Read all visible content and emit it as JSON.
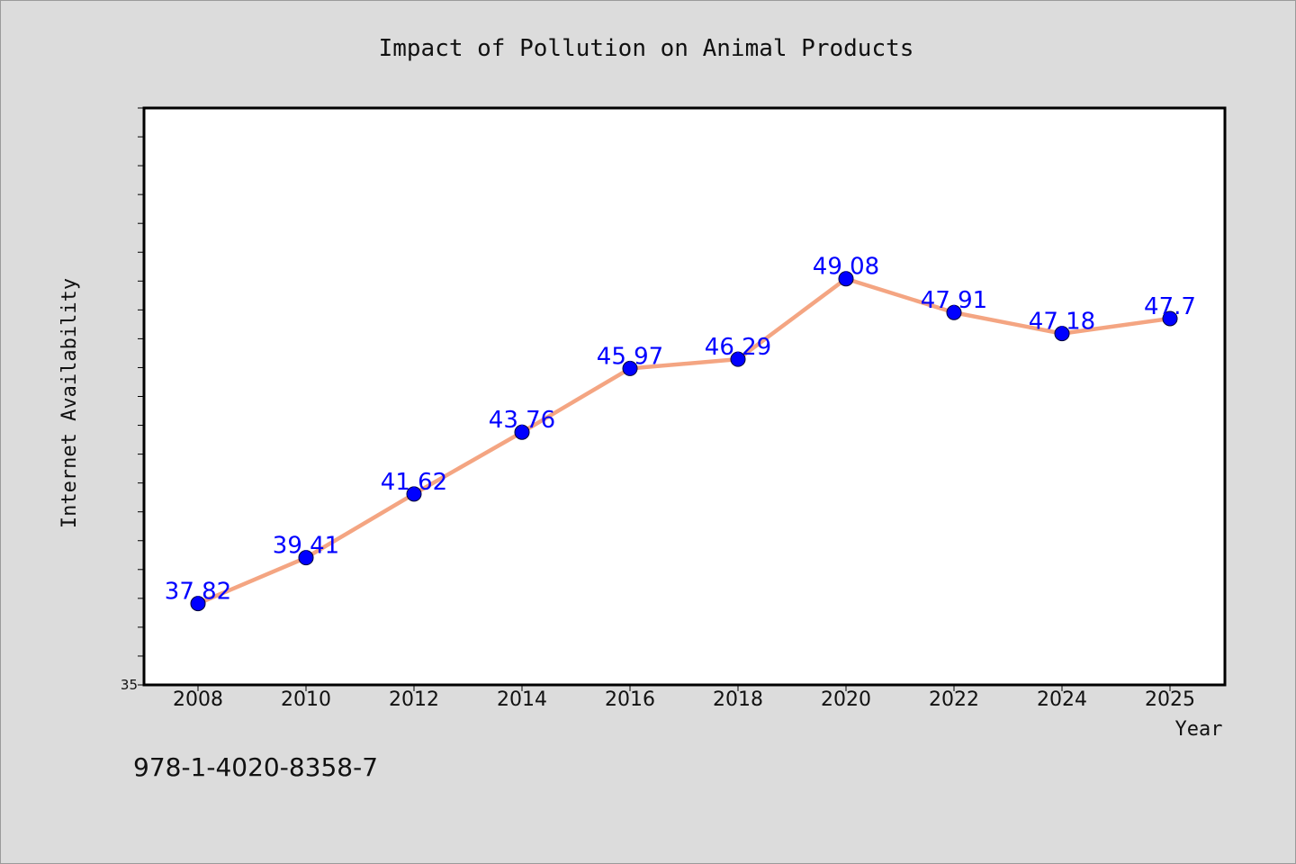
{
  "chart_data": {
    "type": "line",
    "title": "Impact of Pollution on Animal Products",
    "xlabel": "Year",
    "ylabel": "Internet Availability",
    "categories": [
      "2008",
      "2010",
      "2012",
      "2014",
      "2016",
      "2018",
      "2020",
      "2022",
      "2024",
      "2025"
    ],
    "series": [
      {
        "values": [
          37.82,
          39.41,
          41.62,
          43.76,
          45.97,
          46.29,
          49.08,
          47.91,
          47.18,
          47.7
        ]
      }
    ],
    "data_labels": [
      "37.82",
      "39.41",
      "41.62",
      "43.76",
      "45.97",
      "46.29",
      "49.08",
      "47.91",
      "47.18",
      "47.7"
    ],
    "y_tick_labels": [
      "35"
    ],
    "ylim": [
      35,
      55
    ],
    "grid": false,
    "legend": "none",
    "colors": {
      "line": "#f4a582",
      "marker": "#0000ff",
      "data_label": "#0000ff",
      "background": "#dcdcdc",
      "plot_background": "#ffffff"
    }
  },
  "footer": {
    "isbn": "978-1-4020-8358-7"
  }
}
